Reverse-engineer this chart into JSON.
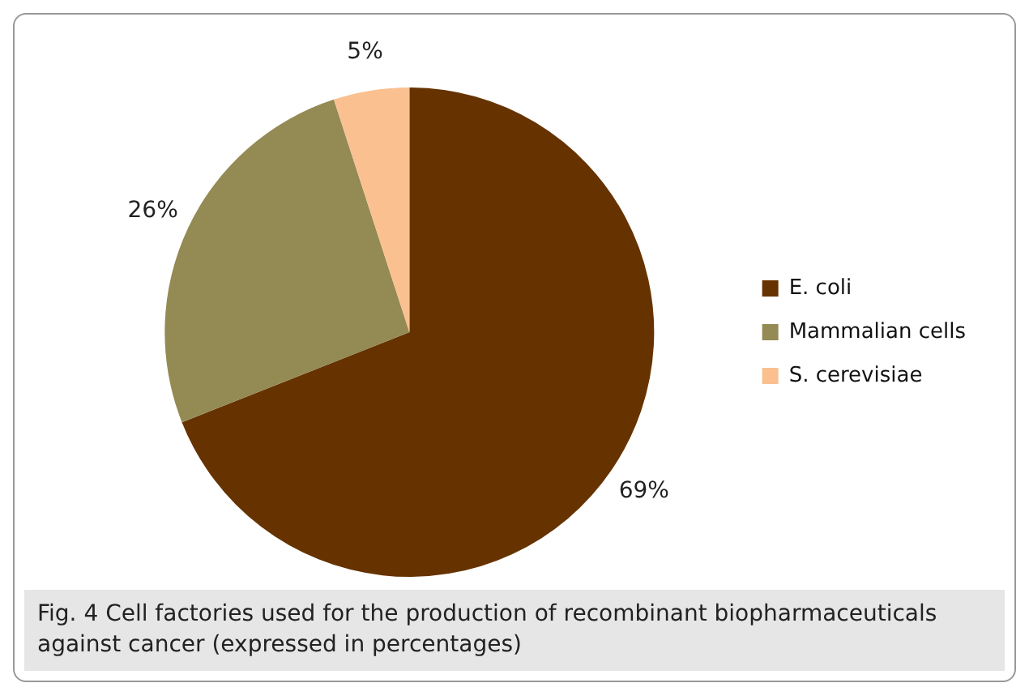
{
  "chart_data": {
    "type": "pie",
    "categories": [
      "E. coli",
      "Mammalian cells",
      "S. cerevisiae"
    ],
    "values": [
      69,
      26,
      5
    ],
    "colors": [
      "#663300",
      "#948a54",
      "#fac090"
    ],
    "value_labels": [
      "69%",
      "26%",
      "5%"
    ],
    "legend": "right",
    "annotations": [
      "Fig. 4  Cell factories used for the production of recombinant biopharmaceuticals against cancer (expressed in percentages)"
    ]
  }
}
